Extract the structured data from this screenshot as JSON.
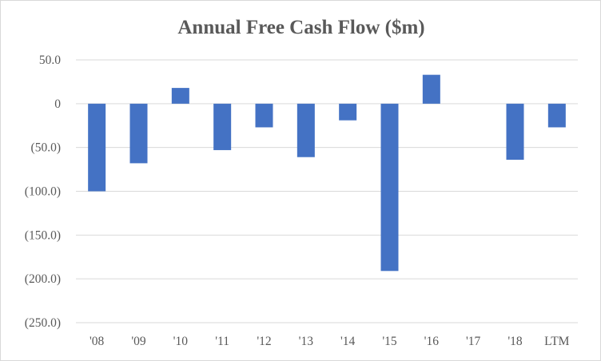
{
  "chart_data": {
    "type": "bar",
    "title": "Annual Free Cash Flow ($m)",
    "xlabel": "",
    "ylabel": "",
    "categories": [
      "'08",
      "'09",
      "'10",
      "'11",
      "'12",
      "'13",
      "'14",
      "'15",
      "'16",
      "'17",
      "'18",
      "LTM"
    ],
    "values": [
      -100,
      -68,
      18,
      -53,
      -27,
      -61,
      -19,
      -191,
      33,
      0,
      -64,
      -27
    ],
    "ylim": [
      -250,
      50
    ],
    "yticks": [
      50,
      0,
      -50,
      -100,
      -150,
      -200,
      -250
    ],
    "ytick_labels": [
      "50.0",
      "0",
      "(50.0)",
      "(100.0)",
      "(150.0)",
      "(200.0)",
      "(250.0)"
    ],
    "grid": true,
    "legend": "none",
    "bar_color": "#4472c4"
  }
}
